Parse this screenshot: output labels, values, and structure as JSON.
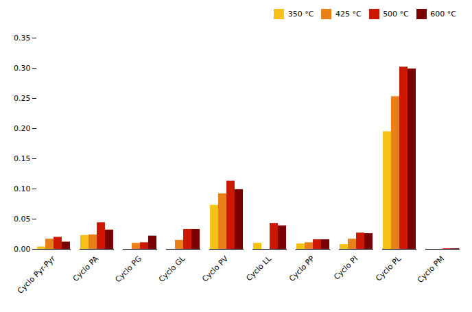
{
  "chart_data": {
    "type": "bar",
    "categories": [
      "Cyclo Pyr-Pyr",
      "Cyclo PA",
      "Cyclo PG",
      "Cyclo GL",
      "Cyclo PV",
      "Cyclo LL",
      "Cyclo PP",
      "Cyclo PI",
      "Cyclo PL",
      "Cyclo PM"
    ],
    "series": [
      {
        "name": "350 °C",
        "color": "#F5C118",
        "values": [
          0.004,
          0.023,
          0.0,
          0.0,
          0.073,
          0.01,
          0.009,
          0.008,
          0.195,
          0.0
        ]
      },
      {
        "name": "425 °C",
        "color": "#E8801A",
        "values": [
          0.017,
          0.024,
          0.01,
          0.015,
          0.092,
          0.0,
          0.011,
          0.017,
          0.253,
          0.0
        ]
      },
      {
        "name": "500 °C",
        "color": "#CC1800",
        "values": [
          0.02,
          0.044,
          0.011,
          0.033,
          0.113,
          0.043,
          0.016,
          0.027,
          0.302,
          0.001
        ]
      },
      {
        "name": "600 °C",
        "color": "#780000",
        "values": [
          0.012,
          0.032,
          0.022,
          0.033,
          0.099,
          0.039,
          0.016,
          0.026,
          0.299,
          0.001
        ]
      }
    ],
    "ylim": [
      0,
      0.35
    ],
    "yticks": [
      {
        "value": 0,
        "label": "0.00"
      },
      0.05,
      {
        "value": 0.1,
        "label": "0.10"
      },
      0.15,
      {
        "value": 0.2,
        "label": "0.20"
      },
      0.25,
      {
        "value": 0.3,
        "label": "0.30"
      },
      0.35
    ],
    "grid": false,
    "legend": "upper right"
  }
}
